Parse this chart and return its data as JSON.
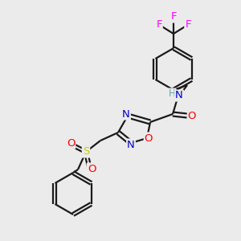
{
  "bg_color": "#ebebeb",
  "bond_color": "#1a1a1a",
  "atom_colors": {
    "N": "#0000cc",
    "O": "#ff0000",
    "S": "#cccc00",
    "F": "#ff00ff",
    "H_color": "#5aacac",
    "C": "#1a1a1a"
  },
  "lw": 1.6,
  "fs": 9.5,
  "figsize": [
    3.0,
    3.0
  ],
  "dpi": 100
}
